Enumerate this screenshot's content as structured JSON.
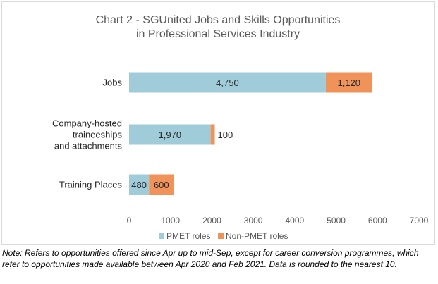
{
  "chart_data": {
    "type": "bar",
    "orientation": "horizontal",
    "stacked": true,
    "title_lines": [
      "Chart 2 - SGUnited Jobs and Skills Opportunities",
      "in Professional Services Industry"
    ],
    "categories": [
      {
        "lines": [
          "Jobs"
        ]
      },
      {
        "lines": [
          "Company-hosted",
          "traineeships",
          "and attachments"
        ]
      },
      {
        "lines": [
          "Training Places"
        ]
      }
    ],
    "series": [
      {
        "name": "PMET roles",
        "color": "#9fccd8",
        "values": [
          4750,
          1970,
          480
        ],
        "labels": [
          "4,750",
          "1,970",
          "480"
        ]
      },
      {
        "name": "Non-PMET roles",
        "color": "#f0935b",
        "values": [
          1120,
          100,
          600
        ],
        "labels": [
          "1,120",
          "100",
          "600"
        ]
      }
    ],
    "xlim": [
      0,
      7000
    ],
    "xticks": [
      0,
      1000,
      2000,
      3000,
      4000,
      5000,
      6000,
      7000
    ],
    "grid": false,
    "legend_position": "bottom"
  },
  "note": "Note: Refers to opportunities offered since Apr up to mid-Sep, except for career conversion programmes, which refer to opportunities made available between Apr 2020 and Feb 2021. Data is rounded to the nearest 10."
}
